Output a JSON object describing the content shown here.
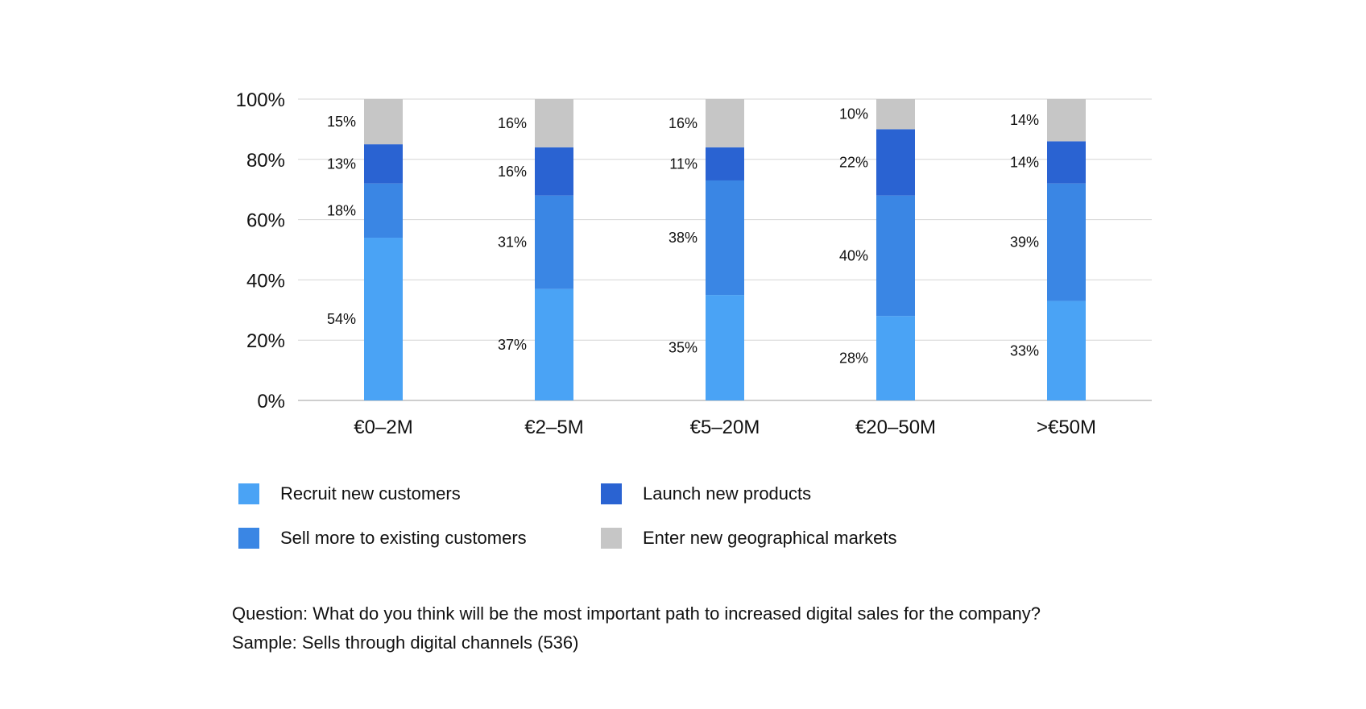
{
  "chart_data": {
    "type": "bar",
    "stacked": true,
    "categories": [
      "€0–2M",
      "€2–5M",
      "€5–20M",
      "€20–50M",
      ">€50M"
    ],
    "series": [
      {
        "name": "Recruit new customers",
        "color": "#4aa3f5",
        "values": [
          54,
          37,
          35,
          28,
          33
        ]
      },
      {
        "name": "Sell more to existing customers",
        "color": "#3a86e4",
        "values": [
          18,
          31,
          38,
          40,
          39
        ]
      },
      {
        "name": "Launch new products",
        "color": "#2a63d2",
        "values": [
          13,
          16,
          11,
          22,
          14
        ]
      },
      {
        "name": "Enter new geographical markets",
        "color": "#c6c6c6",
        "values": [
          15,
          16,
          16,
          10,
          14
        ]
      }
    ],
    "yticks": [
      "0%",
      "20%",
      "40%",
      "60%",
      "80%",
      "100%"
    ],
    "ylim": [
      0,
      100
    ],
    "grid": true,
    "legend_position": "bottom"
  },
  "legend": [
    {
      "label": "Recruit new customers",
      "color": "#4aa3f5"
    },
    {
      "label": "Launch new products",
      "color": "#2a63d2"
    },
    {
      "label": "Sell more to existing customers",
      "color": "#3a86e4"
    },
    {
      "label": "Enter new geographical markets",
      "color": "#c6c6c6"
    }
  ],
  "notes": {
    "question": "Question: What do you think will be the most important path to increased digital sales for the company?",
    "sample": "Sample: Sells through digital channels (536)"
  }
}
